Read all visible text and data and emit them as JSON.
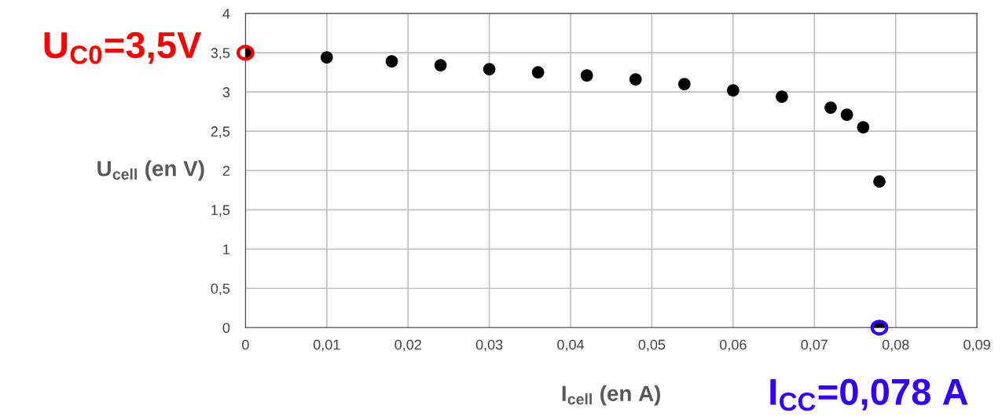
{
  "chart_data": {
    "type": "scatter",
    "xlabel": "I$_{cell}$ (en A)",
    "ylabel": "U$_{cell}$ (en V)",
    "x": [
      0,
      0.01,
      0.018,
      0.024,
      0.03,
      0.036,
      0.042,
      0.048,
      0.054,
      0.06,
      0.066,
      0.072,
      0.074,
      0.076,
      0.078,
      0.078
    ],
    "series": [
      {
        "color": "#000000",
        "values": [
          3.5,
          3.44,
          3.39,
          3.34,
          3.29,
          3.25,
          3.21,
          3.16,
          3.1,
          3.02,
          2.94,
          2.8,
          2.71,
          2.55,
          1.86,
          0
        ]
      }
    ],
    "xlim": [
      0,
      0.09
    ],
    "xticks": [
      0,
      {
        "value": 0.01,
        "label": "0,01"
      },
      {
        "value": 0.02,
        "label": "0,02"
      },
      {
        "value": 0.03,
        "label": "0,03"
      },
      {
        "value": 0.04,
        "label": "0,04"
      },
      {
        "value": 0.05,
        "label": "0,05"
      },
      {
        "value": 0.06,
        "label": "0,06"
      },
      {
        "value": 0.07,
        "label": "0,07"
      },
      {
        "value": 0.08,
        "label": "0,08"
      },
      {
        "value": 0.09,
        "label": "0,09"
      }
    ],
    "ylim": [
      0,
      4
    ],
    "yticks": [
      0,
      {
        "value": 0.5,
        "label": "0,5"
      },
      1,
      {
        "value": 1.5,
        "label": "1,5"
      },
      2,
      {
        "value": 2.5,
        "label": "2,5"
      },
      3,
      {
        "value": 3.5,
        "label": "3,5"
      },
      4
    ],
    "grid": true,
    "marker": "circle",
    "annotations": [
      {
        "text": "U$_{C0}$=3,5V",
        "x": 0,
        "y": 3.5
      },
      {
        "text": "I$_{CC}$=0,078 A",
        "x": 0.078,
        "y": 0
      }
    ]
  }
}
